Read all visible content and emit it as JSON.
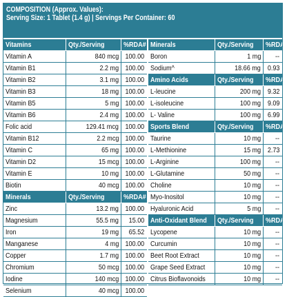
{
  "banner": {
    "line1": "COMPOSITION (Approx. Values):",
    "line2": "Serving Size: 1 Tablet (1.4 g) | Servings Per Container: 60"
  },
  "left": [
    {
      "type": "hdr",
      "name": "Vitamins",
      "qty": "Qty./Serving",
      "rda": "%RDA#"
    },
    {
      "type": "row",
      "name": "Vitamin A",
      "qty": "840 mcg",
      "rda": "100.00"
    },
    {
      "type": "row",
      "name": "Vitamin B1",
      "qty": "2.2 mg",
      "rda": "100.00"
    },
    {
      "type": "row",
      "name": "Vitamin B2",
      "qty": "3.1 mg",
      "rda": "100.00"
    },
    {
      "type": "row",
      "name": "Vitamin B3",
      "qty": "18 mg",
      "rda": "100.00"
    },
    {
      "type": "row",
      "name": "Vitamin B5",
      "qty": "5 mg",
      "rda": "100.00"
    },
    {
      "type": "row",
      "name": "Vitamin B6",
      "qty": "2.4 mg",
      "rda": "100.00"
    },
    {
      "type": "row",
      "name": "Folic acid",
      "qty": "129.41 mcg",
      "rda": "100.00"
    },
    {
      "type": "row",
      "name": "Vitamin B12",
      "qty": "2.2 mcg",
      "rda": "100.00"
    },
    {
      "type": "row",
      "name": "Vitamin C",
      "qty": "65 mg",
      "rda": "100.00"
    },
    {
      "type": "row",
      "name": "Vitamin D2",
      "qty": "15 mcg",
      "rda": "100.00"
    },
    {
      "type": "row",
      "name": "Vitamin  E",
      "qty": "10 mg",
      "rda": "100.00"
    },
    {
      "type": "row",
      "name": "Biotin",
      "qty": "40 mcg",
      "rda": "100.00"
    },
    {
      "type": "hdr",
      "name": "Minerals",
      "qty": "Qty./Serving",
      "rda": "%RDA#"
    },
    {
      "type": "row",
      "name": "Zinc",
      "qty": "13.2 mg",
      "rda": "100.00"
    },
    {
      "type": "row",
      "name": "Magnesium",
      "qty": "55.5 mg",
      "rda": "15.00"
    },
    {
      "type": "row",
      "name": "Iron",
      "qty": "19 mg",
      "rda": "65.52"
    },
    {
      "type": "row",
      "name": "Manganese",
      "qty": "4 mg",
      "rda": "100.00"
    },
    {
      "type": "row",
      "name": "Copper",
      "qty": "1.7 mg",
      "rda": "100.00"
    },
    {
      "type": "row",
      "name": "Chromium",
      "qty": "50 mcg",
      "rda": "100.00"
    },
    {
      "type": "row",
      "name": "Iodine",
      "qty": "140 mcg",
      "rda": "100.00"
    },
    {
      "type": "row",
      "name": "Selenium",
      "qty": "40 mcg",
      "rda": "100.00"
    }
  ],
  "right": [
    {
      "type": "hdr",
      "name": "Minerals",
      "qty": "Qty./Serving",
      "rda": "%RDA#"
    },
    {
      "type": "row",
      "name": "Boron",
      "qty": "1 mg",
      "rda": "--"
    },
    {
      "type": "row",
      "name": "Sodium^",
      "qty": "18.66 mg",
      "rda": "0.93"
    },
    {
      "type": "hdr",
      "name": "Amino Acids",
      "qty": "Qty./Serving",
      "rda": "%RDA#"
    },
    {
      "type": "row",
      "name": "L-leucine",
      "qty": "200 mg",
      "rda": "9.32"
    },
    {
      "type": "row",
      "name": "L-isoleucine",
      "qty": "100 mg",
      "rda": "9.09"
    },
    {
      "type": "row",
      "name": "L- Valine",
      "qty": "100 mg",
      "rda": "6.99"
    },
    {
      "type": "hdr",
      "name": "Sports Blend",
      "qty": "Qty./Serving",
      "rda": "%RDA#"
    },
    {
      "type": "row",
      "name": "Taurine",
      "qty": "10 mg",
      "rda": "--"
    },
    {
      "type": "row",
      "name": "L-Methionine",
      "qty": "15 mg",
      "rda": "2.73"
    },
    {
      "type": "row",
      "name": "L-Arginine",
      "qty": "100 mg",
      "rda": "--"
    },
    {
      "type": "row",
      "name": "L-Glutamine",
      "qty": "50 mg",
      "rda": "--"
    },
    {
      "type": "row",
      "name": "Choline",
      "qty": "10 mg",
      "rda": "--"
    },
    {
      "type": "row",
      "name": "Myo-Inositol",
      "qty": "10 mg",
      "rda": "--"
    },
    {
      "type": "row",
      "name": "Hyaluronic Acid",
      "qty": "5 mg",
      "rda": "--"
    },
    {
      "type": "hdr",
      "name": "Anti-Oxidant Blend",
      "qty": "Qty./Serving",
      "rda": "%RDA#"
    },
    {
      "type": "row",
      "name": "Lycopene",
      "qty": "10 mg",
      "rda": "--"
    },
    {
      "type": "row",
      "name": "Curcumin",
      "qty": "10 mg",
      "rda": "--"
    },
    {
      "type": "row",
      "name": "Beet Root Extract",
      "qty": "10 mg",
      "rda": "--"
    },
    {
      "type": "row",
      "name": "Grape Seed Extract",
      "qty": "10 mg",
      "rda": "--"
    },
    {
      "type": "row",
      "name": "Citrus Bioflavonoids",
      "qty": "10 mg",
      "rda": "--"
    }
  ]
}
